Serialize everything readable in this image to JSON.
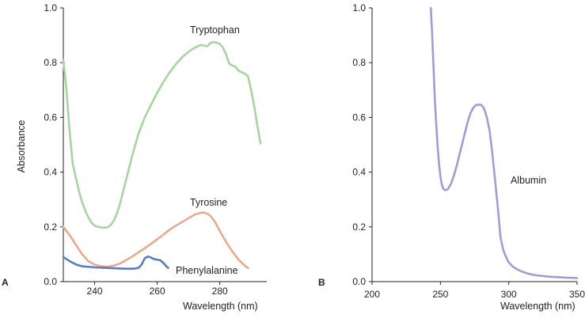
{
  "chart_data": [
    {
      "type": "line",
      "panel": "A",
      "title": "",
      "xlabel": "Wavelength (nm)",
      "ylabel": "Absorbance",
      "xlim": [
        230,
        295
      ],
      "ylim": [
        0,
        1.0
      ],
      "xticks": [
        240,
        260,
        280
      ],
      "yticks": [
        "0.0",
        "0.2",
        "0.4",
        "0.6",
        "0.8",
        "1.0"
      ],
      "series": [
        {
          "name": "Tryptophan",
          "color": "#a8d4a0",
          "points": [
            [
              230,
              0.81
            ],
            [
              231,
              0.7
            ],
            [
              232,
              0.55
            ],
            [
              233,
              0.43
            ],
            [
              234,
              0.38
            ],
            [
              235,
              0.33
            ],
            [
              236,
              0.29
            ],
            [
              237,
              0.26
            ],
            [
              238,
              0.235
            ],
            [
              239,
              0.215
            ],
            [
              240,
              0.205
            ],
            [
              241,
              0.2
            ],
            [
              242,
              0.198
            ],
            [
              243,
              0.197
            ],
            [
              244,
              0.198
            ],
            [
              245,
              0.205
            ],
            [
              246,
              0.22
            ],
            [
              247,
              0.245
            ],
            [
              248,
              0.28
            ],
            [
              250,
              0.37
            ],
            [
              252,
              0.46
            ],
            [
              254,
              0.54
            ],
            [
              256,
              0.6
            ],
            [
              258,
              0.645
            ],
            [
              260,
              0.69
            ],
            [
              262,
              0.73
            ],
            [
              264,
              0.765
            ],
            [
              266,
              0.795
            ],
            [
              268,
              0.82
            ],
            [
              270,
              0.84
            ],
            [
              272,
              0.855
            ],
            [
              274,
              0.865
            ],
            [
              275,
              0.862
            ],
            [
              276,
              0.86
            ],
            [
              277,
              0.872
            ],
            [
              278,
              0.875
            ],
            [
              279,
              0.873
            ],
            [
              280,
              0.868
            ],
            [
              281,
              0.855
            ],
            [
              282,
              0.83
            ],
            [
              283,
              0.795
            ],
            [
              284,
              0.79
            ],
            [
              285,
              0.785
            ],
            [
              286,
              0.77
            ],
            [
              287,
              0.765
            ],
            [
              288,
              0.76
            ],
            [
              289,
              0.75
            ],
            [
              290,
              0.7
            ],
            [
              291,
              0.64
            ],
            [
              292,
              0.57
            ],
            [
              293,
              0.505
            ]
          ]
        },
        {
          "name": "Tyrosine",
          "color": "#e8a98c",
          "points": [
            [
              230,
              0.2
            ],
            [
              232,
              0.17
            ],
            [
              234,
              0.135
            ],
            [
              236,
              0.1
            ],
            [
              238,
              0.075
            ],
            [
              240,
              0.062
            ],
            [
              242,
              0.056
            ],
            [
              244,
              0.055
            ],
            [
              246,
              0.058
            ],
            [
              248,
              0.066
            ],
            [
              250,
              0.078
            ],
            [
              252,
              0.092
            ],
            [
              254,
              0.107
            ],
            [
              256,
              0.122
            ],
            [
              258,
              0.138
            ],
            [
              260,
              0.155
            ],
            [
              262,
              0.172
            ],
            [
              264,
              0.19
            ],
            [
              266,
              0.205
            ],
            [
              268,
              0.218
            ],
            [
              270,
              0.232
            ],
            [
              272,
              0.245
            ],
            [
              274,
              0.252
            ],
            [
              275,
              0.252
            ],
            [
              276,
              0.248
            ],
            [
              277,
              0.24
            ],
            [
              278,
              0.226
            ],
            [
              279,
              0.207
            ],
            [
              280,
              0.185
            ],
            [
              282,
              0.145
            ],
            [
              284,
              0.11
            ],
            [
              286,
              0.08
            ],
            [
              288,
              0.058
            ],
            [
              289,
              0.05
            ]
          ]
        },
        {
          "name": "Phenylalanine",
          "color": "#5b7cc4",
          "points": [
            [
              230,
              0.09
            ],
            [
              232,
              0.075
            ],
            [
              234,
              0.063
            ],
            [
              236,
              0.056
            ],
            [
              240,
              0.052
            ],
            [
              244,
              0.05
            ],
            [
              248,
              0.048
            ],
            [
              250,
              0.047
            ],
            [
              252,
              0.047
            ],
            [
              253,
              0.048
            ],
            [
              254,
              0.05
            ],
            [
              255,
              0.062
            ],
            [
              256,
              0.085
            ],
            [
              257,
              0.092
            ],
            [
              258,
              0.088
            ],
            [
              259,
              0.082
            ],
            [
              260,
              0.08
            ],
            [
              261,
              0.078
            ],
            [
              262,
              0.068
            ],
            [
              263,
              0.055
            ],
            [
              263.5,
              0.05
            ]
          ]
        }
      ]
    },
    {
      "type": "line",
      "panel": "B",
      "title": "",
      "xlabel": "Wavelength (nm)",
      "ylabel": "",
      "xlim": [
        200,
        350
      ],
      "ylim": [
        0,
        1.0
      ],
      "xticks": [
        200,
        250,
        300,
        350
      ],
      "yticks": [
        "0.0",
        "0.2",
        "0.4",
        "0.6",
        "0.8",
        "1.0"
      ],
      "series": [
        {
          "name": "Albumin",
          "color": "#a898d4",
          "points": [
            [
              243,
              1.0
            ],
            [
              244,
              0.9
            ],
            [
              245,
              0.78
            ],
            [
              246,
              0.66
            ],
            [
              247,
              0.57
            ],
            [
              248,
              0.49
            ],
            [
              249,
              0.43
            ],
            [
              250,
              0.385
            ],
            [
              251,
              0.355
            ],
            [
              252,
              0.34
            ],
            [
              253,
              0.335
            ],
            [
              254,
              0.334
            ],
            [
              255,
              0.336
            ],
            [
              256,
              0.342
            ],
            [
              258,
              0.36
            ],
            [
              260,
              0.39
            ],
            [
              262,
              0.425
            ],
            [
              264,
              0.465
            ],
            [
              266,
              0.505
            ],
            [
              268,
              0.545
            ],
            [
              270,
              0.585
            ],
            [
              272,
              0.615
            ],
            [
              274,
              0.635
            ],
            [
              276,
              0.645
            ],
            [
              278,
              0.647
            ],
            [
              280,
              0.645
            ],
            [
              282,
              0.632
            ],
            [
              284,
              0.6
            ],
            [
              286,
              0.55
            ],
            [
              288,
              0.47
            ],
            [
              290,
              0.37
            ],
            [
              292,
              0.27
            ],
            [
              294,
              0.16
            ],
            [
              296,
              0.115
            ],
            [
              298,
              0.09
            ],
            [
              300,
              0.07
            ],
            [
              303,
              0.055
            ],
            [
              306,
              0.045
            ],
            [
              310,
              0.036
            ],
            [
              315,
              0.028
            ],
            [
              320,
              0.023
            ],
            [
              330,
              0.018
            ],
            [
              340,
              0.015
            ],
            [
              350,
              0.013
            ]
          ]
        }
      ]
    }
  ]
}
